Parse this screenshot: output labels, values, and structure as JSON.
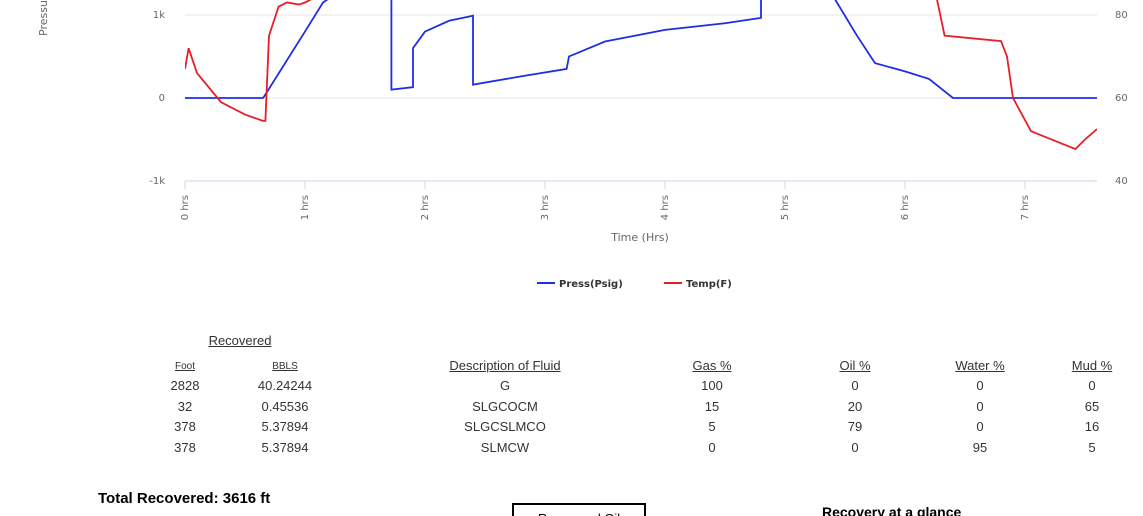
{
  "chart_data": {
    "type": "line",
    "y_axis_title": "Pressu",
    "x_axis_title": "Time (Hrs)",
    "xlim": [
      0,
      7.6
    ],
    "xticks": [
      {
        "value": 0,
        "label": "0 hrs"
      },
      {
        "value": 1,
        "label": "1 hrs"
      },
      {
        "value": 2,
        "label": "2 hrs"
      },
      {
        "value": 3,
        "label": "3 hrs"
      },
      {
        "value": 4,
        "label": "4 hrs"
      },
      {
        "value": 5,
        "label": "5 hrs"
      },
      {
        "value": 6,
        "label": "6 hrs"
      },
      {
        "value": 7,
        "label": "7 hrs"
      }
    ],
    "ylim": [
      -1000,
      1180
    ],
    "yticks": [
      {
        "value": -1000,
        "label": "-1k"
      },
      0,
      {
        "value": 1000,
        "label": "1k"
      }
    ],
    "y2lim": [
      40,
      83.6
    ],
    "y2ticks": [
      40,
      60,
      80
    ],
    "grid": true,
    "series": [
      {
        "name": "Press(Psig)",
        "color": "#1f2ee6",
        "x": [
          0,
          0.65,
          0.66,
          1.0,
          1.15,
          1.3,
          1.72,
          1.72,
          1.9,
          1.9,
          2.0,
          2.2,
          2.4,
          2.4,
          2.8,
          3.18,
          3.2,
          3.5,
          4.0,
          4.5,
          4.8,
          4.8,
          5.37,
          5.6,
          5.75,
          6.0,
          6.2,
          6.4,
          7.6
        ],
        "values": [
          0,
          0,
          20,
          800,
          1150,
          1300,
          1300,
          100,
          130,
          600,
          800,
          930,
          990,
          160,
          260,
          350,
          500,
          680,
          820,
          900,
          965,
          1300,
          1300,
          750,
          420,
          320,
          230,
          0,
          0
        ]
      },
      {
        "name": "Temp(F)",
        "color": "#e61e28",
        "axis": "y2",
        "x": [
          0,
          0.03,
          0.1,
          0.3,
          0.5,
          0.65,
          0.67,
          0.7,
          0.78,
          0.85,
          0.95,
          1.0,
          1.2,
          1.3,
          6.25,
          6.33,
          6.8,
          6.85,
          6.9,
          7.05,
          7.42,
          7.5,
          7.6
        ],
        "values": [
          67,
          72,
          66,
          59,
          56,
          54.5,
          54.5,
          75,
          82,
          83,
          82.5,
          83,
          86,
          86,
          86,
          75,
          73.7,
          70,
          60,
          52,
          47.7,
          50,
          52.5
        ]
      }
    ]
  },
  "table": {
    "group_header": "Recovered",
    "columns": [
      "Foot",
      "BBLS",
      "Description of Fluid",
      "Gas %",
      "Oil %",
      "Water %",
      "Mud %"
    ],
    "rows": [
      [
        "2828",
        "40.24244",
        "G",
        "100",
        "0",
        "0",
        "0"
      ],
      [
        "32",
        "0.45536",
        "SLGCOCM",
        "15",
        "20",
        "0",
        "65"
      ],
      [
        "378",
        "5.37894",
        "SLGCSLMCO",
        "5",
        "79",
        "0",
        "16"
      ],
      [
        "378",
        "5.37894",
        "SLMCW",
        "0",
        "0",
        "95",
        "5"
      ]
    ]
  },
  "footer": {
    "total": "Total Recovered: 3616 ft",
    "box": "Recovered Oil",
    "glance": "Recovery at a glance"
  }
}
